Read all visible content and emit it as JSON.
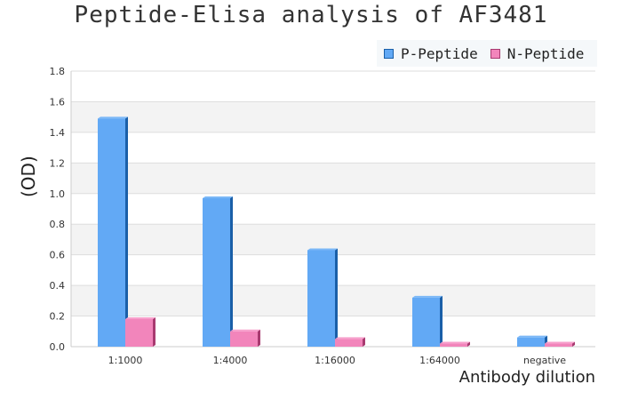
{
  "chart_data": {
    "type": "bar",
    "title": "Peptide-Elisa analysis of AF3481",
    "xlabel": "Antibody dilution",
    "ylabel": "(OD)",
    "categories": [
      "1:1000",
      "1:4000",
      "1:16000",
      "1:64000",
      "negative"
    ],
    "series": [
      {
        "name": "P-Peptide",
        "color": "#62a9f5",
        "values": [
          1.49,
          0.97,
          0.63,
          0.32,
          0.06
        ]
      },
      {
        "name": "N-Peptide",
        "color": "#f285bb",
        "values": [
          0.18,
          0.1,
          0.05,
          0.02,
          0.02
        ]
      }
    ],
    "ylim": [
      0,
      1.8
    ],
    "yticks": [
      "0.0",
      "0.2",
      "0.4",
      "0.6",
      "0.8",
      "1.0",
      "1.2",
      "1.4",
      "1.6",
      "1.8"
    ],
    "grid": true,
    "legend": "top-right"
  }
}
